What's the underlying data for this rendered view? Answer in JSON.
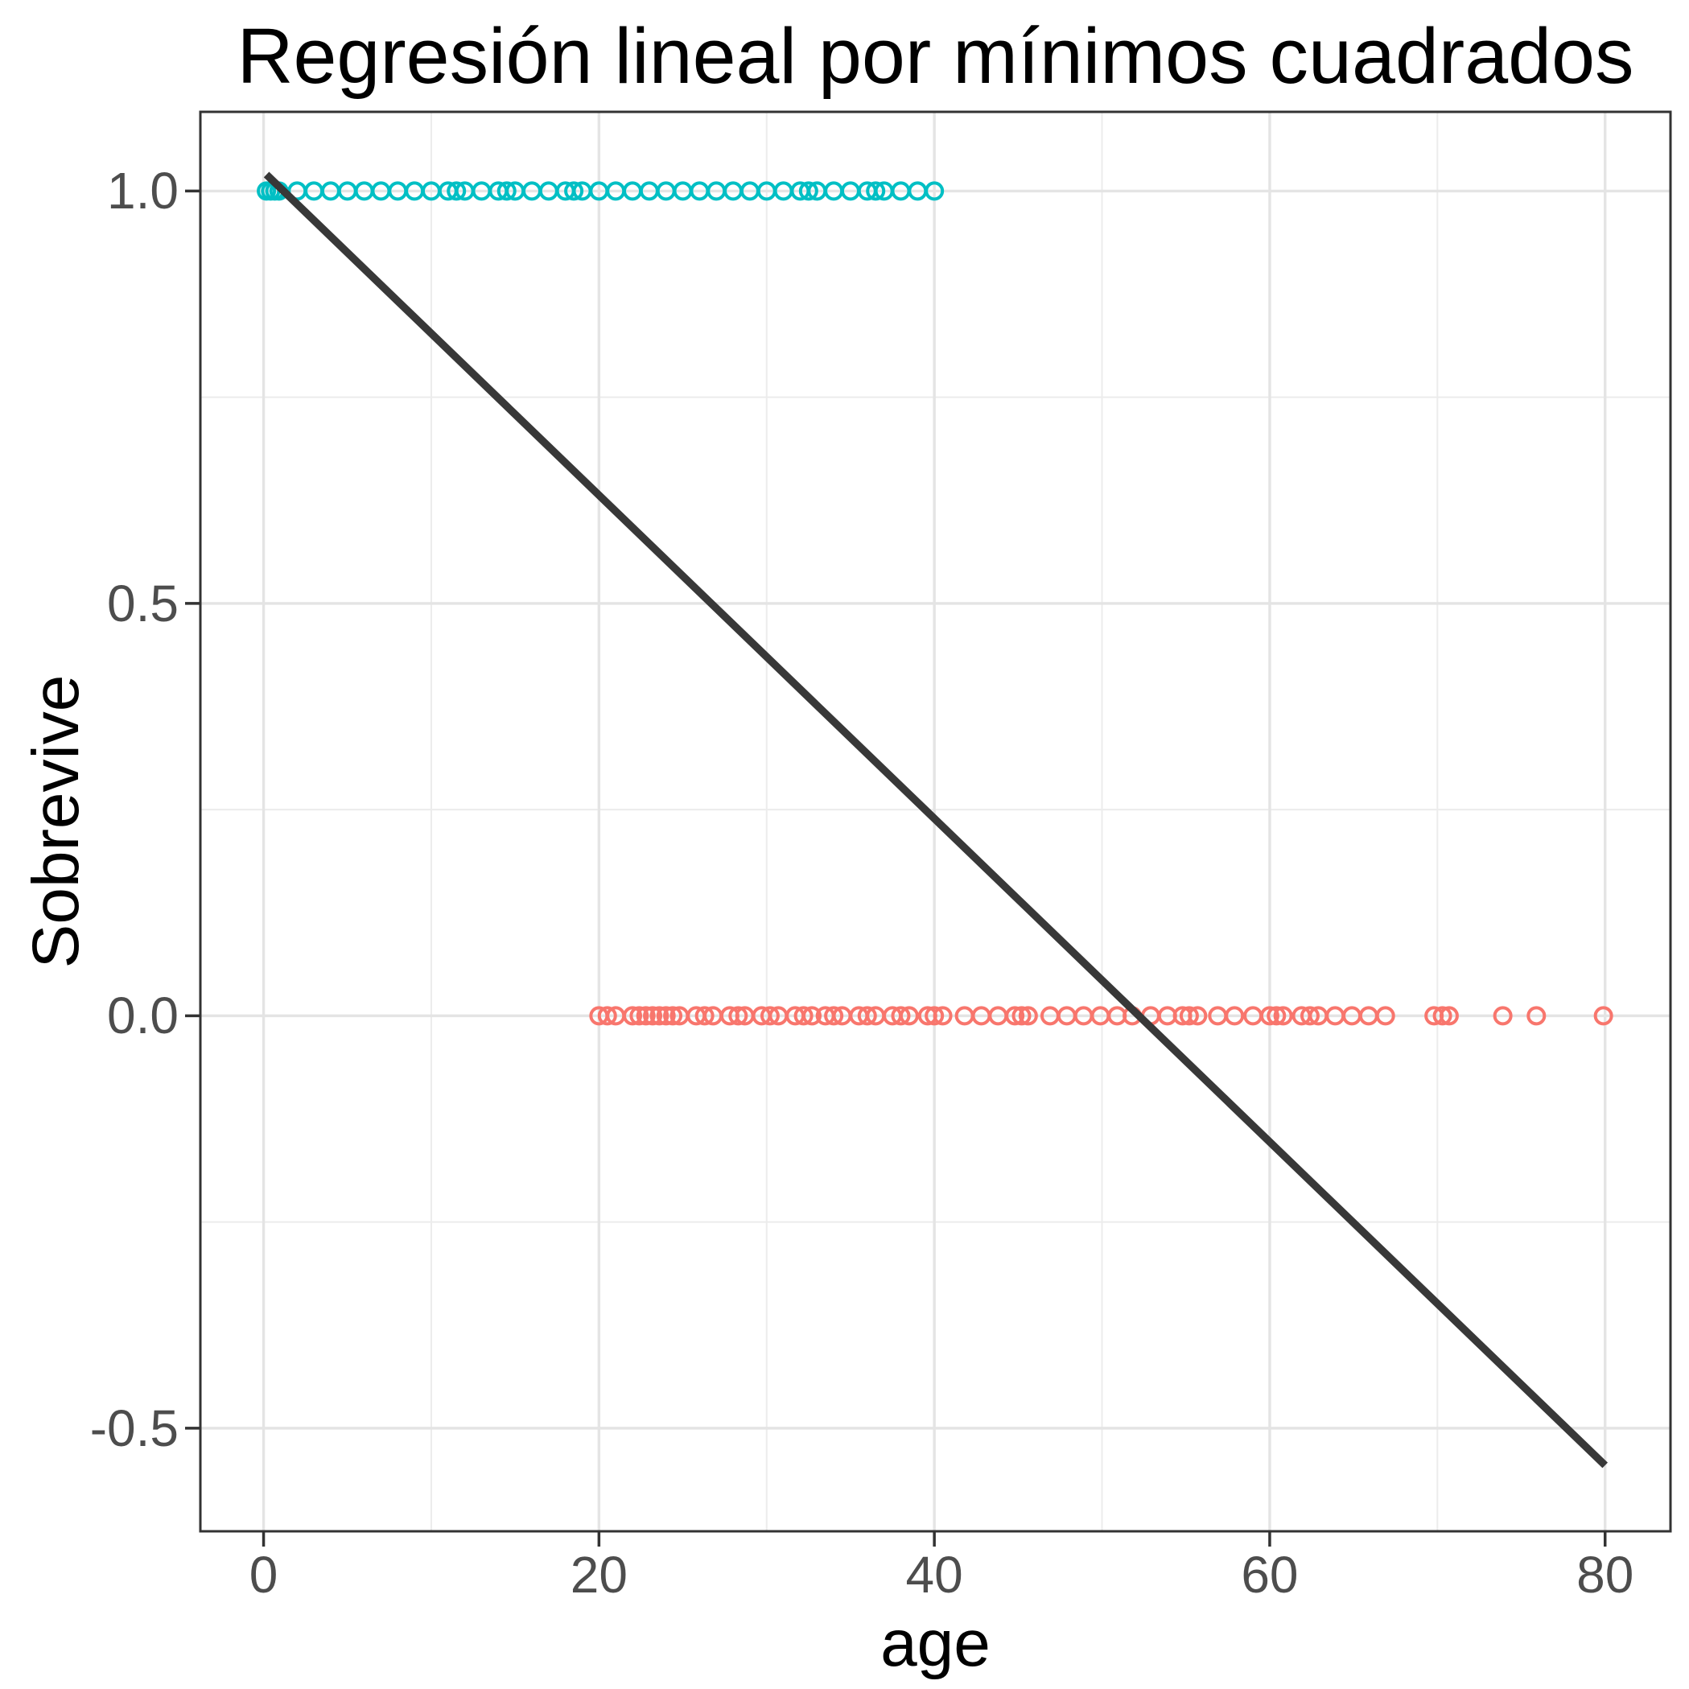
{
  "chart_data": {
    "type": "scatter",
    "title": "Regresión lineal por mínimos cuadrados",
    "xlabel": "age",
    "ylabel": "Sobrevive",
    "xlim": [
      -3.77,
      83.9
    ],
    "ylim": [
      -0.625,
      1.096
    ],
    "x_ticks": [
      0,
      20,
      40,
      60,
      80
    ],
    "x_tick_labels": [
      "0",
      "20",
      "40",
      "60",
      "80"
    ],
    "x_minor_ticks": [
      10,
      30,
      50,
      70
    ],
    "y_ticks": [
      1.0,
      0.5,
      0.0,
      -0.5
    ],
    "y_tick_labels": [
      "1.0",
      "0.5",
      "0.0",
      "-0.5"
    ],
    "y_minor_ticks": [
      0.75,
      0.25,
      -0.25
    ],
    "grid": true,
    "legend": "none",
    "series": [
      {
        "name": "sobrevive_1",
        "marker": "open-circle",
        "color": "#00BFC4",
        "y": 1.0,
        "x": [
          0.17,
          0.42,
          0.67,
          0.92,
          2,
          3,
          4,
          5,
          6,
          7,
          8,
          9,
          10,
          11,
          11.5,
          12,
          13,
          14,
          14.5,
          15,
          16,
          17,
          18,
          18.5,
          19,
          20,
          21,
          22,
          23,
          24,
          25,
          26,
          27,
          28,
          29,
          30,
          31,
          32,
          32.5,
          33,
          34,
          35,
          36,
          36.5,
          37,
          38,
          39,
          40
        ]
      },
      {
        "name": "sobrevive_0",
        "marker": "open-circle",
        "color": "#F8766D",
        "y": 0.0,
        "x": [
          20,
          20.5,
          21,
          22,
          22.4,
          22.8,
          23.2,
          23.6,
          24,
          24.4,
          24.8,
          25.8,
          26.3,
          26.8,
          27.8,
          28.3,
          28.7,
          29.7,
          30.2,
          30.7,
          31.7,
          32.2,
          32.7,
          33.5,
          34,
          34.5,
          35.5,
          36,
          36.5,
          37.5,
          38,
          38.5,
          39.6,
          40,
          40.5,
          41.8,
          42.8,
          43.8,
          44.8,
          45.2,
          45.6,
          46.9,
          47.9,
          48.9,
          49.9,
          50.9,
          51.8,
          52.9,
          53.9,
          54.8,
          55.2,
          55.7,
          56.9,
          57.9,
          59,
          60,
          60.4,
          60.8,
          61.9,
          62.4,
          62.9,
          63.9,
          64.9,
          65.9,
          66.9,
          69.8,
          70.3,
          70.7,
          73.9,
          75.9,
          79.9
        ]
      }
    ],
    "regression_line": {
      "x1": 0.17,
      "y1": 1.02,
      "x2": 80,
      "y2": -0.545
    },
    "colors": {
      "background": "#FFFFFF",
      "panel_border": "#333333",
      "grid_major": "#E4E4E4",
      "grid_minor": "#ECECEC",
      "tick_mark": "#333333",
      "tick_text": "#4D4D4D",
      "axis_title_text": "#000000",
      "line": "#383838",
      "series_survived": "#00BFC4",
      "series_not_survived": "#F8766D"
    }
  }
}
